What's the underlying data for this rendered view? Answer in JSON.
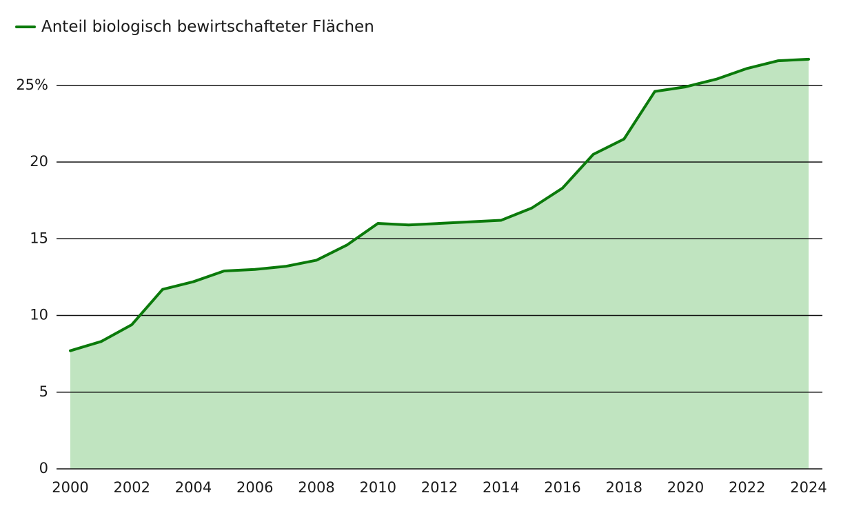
{
  "chart_data": {
    "type": "area",
    "title": "",
    "xlabel": "",
    "ylabel": "",
    "x": [
      2000,
      2001,
      2002,
      2003,
      2004,
      2005,
      2006,
      2007,
      2008,
      2009,
      2010,
      2011,
      2012,
      2013,
      2014,
      2015,
      2016,
      2017,
      2018,
      2019,
      2020,
      2021,
      2022,
      2023,
      2024
    ],
    "series": [
      {
        "name": "Anteil biologisch bewirtschafteter Flächen",
        "values": [
          7.7,
          8.3,
          9.4,
          11.7,
          12.2,
          12.9,
          13.0,
          13.2,
          13.6,
          14.6,
          16.0,
          15.9,
          16.0,
          16.1,
          16.2,
          17.0,
          18.3,
          20.5,
          21.5,
          24.6,
          24.9,
          25.4,
          26.1,
          26.6,
          26.7
        ],
        "line_color": "#0b7a0b",
        "fill_color": "#c0e4c0"
      }
    ],
    "xticks": [
      2000,
      2002,
      2004,
      2006,
      2008,
      2010,
      2012,
      2014,
      2016,
      2018,
      2020,
      2022,
      2024
    ],
    "xtick_labels": [
      "2000",
      "2002",
      "2004",
      "2006",
      "2008",
      "2010",
      "2012",
      "2014",
      "2016",
      "2018",
      "2020",
      "2022",
      "2024"
    ],
    "yticks": [
      0,
      5,
      10,
      15,
      20,
      25
    ],
    "ytick_labels": [
      "0",
      "5",
      "10",
      "15",
      "20",
      "25%"
    ],
    "xlim": [
      2000,
      2024
    ],
    "ylim": [
      0,
      28
    ],
    "grid": "horizontal",
    "legend_position": "top-left"
  }
}
